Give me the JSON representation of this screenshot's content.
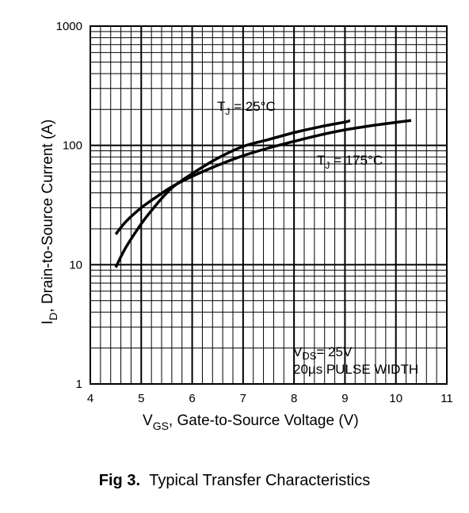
{
  "chart_data": {
    "type": "line",
    "xlabel_main": "V",
    "xlabel_sub": "GS",
    "xlabel_rest": ", Gate-to-Source Voltage (V)",
    "ylabel_main": "I",
    "ylabel_sub": "D",
    "ylabel_rest": ",  Drain-to-Source Current (A)",
    "xlim": [
      4,
      11
    ],
    "ylim": [
      1,
      1000
    ],
    "yscale": "log",
    "grid": true,
    "x_ticks": [
      "4",
      "5",
      "6",
      "7",
      "8",
      "9",
      "10",
      "11"
    ],
    "y_ticks": [
      "1",
      "10",
      "100",
      "1000"
    ],
    "series": [
      {
        "label_main": "T",
        "label_sub": "J",
        "label_rest": " = 25°C",
        "x": [
          4.5,
          4.7,
          5.0,
          5.3,
          5.6,
          6.0,
          6.5,
          7.0,
          7.5,
          8.0,
          8.5,
          9.0,
          9.1
        ],
        "y": [
          9.5,
          14,
          22,
          32,
          44,
          58,
          78,
          98,
          112,
          128,
          143,
          157,
          162
        ]
      },
      {
        "label_main": "T",
        "label_sub": "J",
        "label_rest": " = 175°C",
        "x": [
          4.5,
          4.7,
          5.0,
          5.3,
          5.6,
          6.0,
          6.5,
          7.0,
          7.5,
          8.0,
          8.5,
          9.0,
          9.5,
          10.0,
          10.3
        ],
        "y": [
          18,
          23,
          30,
          37,
          45,
          55,
          68,
          82,
          95,
          108,
          122,
          135,
          146,
          156,
          162
        ]
      }
    ],
    "annotation_line1_main": "V",
    "annotation_line1_sub": "DS",
    "annotation_line1_rest": "= 25V",
    "annotation_line2": "20µs PULSE WIDTH"
  },
  "caption": {
    "fig": "Fig 3.",
    "text": "Typical Transfer Characteristics"
  }
}
